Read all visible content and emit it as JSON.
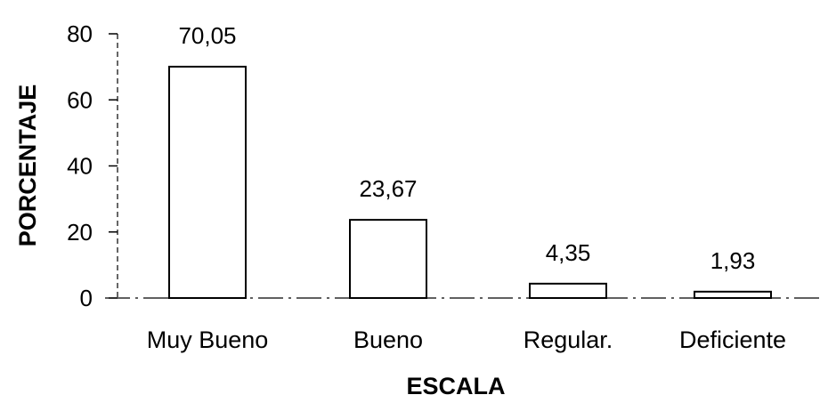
{
  "chart_data": {
    "type": "bar",
    "categories": [
      "Muy Bueno",
      "Bueno",
      "Regular.",
      "Deficiente"
    ],
    "values": [
      70.05,
      23.67,
      4.35,
      1.93
    ],
    "value_labels": [
      "70,05",
      "23,67",
      "4,35",
      "1,93"
    ],
    "title": "",
    "xlabel": "ESCALA",
    "ylabel": "PORCENTAJE",
    "ylim": [
      0,
      80
    ],
    "yticks": [
      0,
      20,
      40,
      60,
      80
    ],
    "ytick_labels": [
      "0",
      "20",
      "40",
      "60",
      "80"
    ],
    "grid": false,
    "bar_fill": "#ffffff",
    "bar_stroke": "#000000"
  }
}
